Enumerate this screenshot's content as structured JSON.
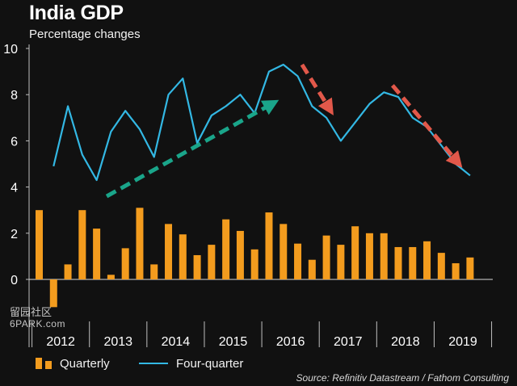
{
  "header": {
    "title": "India GDP",
    "subtitle": "Percentage changes"
  },
  "source": "Source: Refinitiv Datastream / Fathom Consulting",
  "watermark": {
    "text": "留园社区",
    "site": "6PARK.com"
  },
  "colors": {
    "background": "#111111",
    "bars": "#f39c1e",
    "line": "#33b8e4",
    "arrow_up": "#1aa58a",
    "arrow_down": "#e2584a"
  },
  "chart_data": {
    "type": "bar",
    "title": "India GDP",
    "subtitle": "Percentage changes",
    "xlabel": "",
    "ylabel": "",
    "ylim": [
      -1,
      10
    ],
    "yticks": [
      0,
      2,
      4,
      6,
      8,
      10
    ],
    "year_labels": [
      "2012",
      "2013",
      "2014",
      "2015",
      "2016",
      "2017",
      "2018",
      "2019"
    ],
    "quarters_per_year": 4,
    "legend_position": "bottom",
    "grid": false,
    "series": [
      {
        "name": "Quarterly",
        "type": "bar",
        "values": [
          3.0,
          -1.2,
          0.65,
          3.0,
          2.2,
          0.2,
          1.35,
          3.1,
          0.65,
          2.4,
          1.95,
          1.05,
          1.5,
          2.6,
          2.1,
          1.3,
          2.9,
          2.4,
          1.55,
          0.85,
          1.9,
          1.5,
          2.3,
          2.0,
          2.0,
          1.4,
          1.4,
          1.65,
          1.15,
          0.7,
          0.95
        ]
      },
      {
        "name": "Four-quarter",
        "type": "line",
        "values": [
          4.9,
          7.5,
          5.4,
          4.3,
          6.4,
          7.3,
          6.5,
          5.3,
          8.0,
          8.7,
          5.9,
          7.1,
          7.5,
          8.0,
          7.2,
          9.0,
          9.3,
          8.8,
          7.5,
          7.0,
          6.0,
          6.8,
          7.6,
          8.1,
          7.9,
          7.0,
          6.6,
          5.8,
          5.0,
          4.5
        ]
      }
    ],
    "annotations": [
      {
        "type": "arrow",
        "style": "dashed",
        "color": "#1aa58a",
        "from": [
          4.7,
          3.6
        ],
        "to": [
          16.2,
          7.6
        ]
      },
      {
        "type": "arrow",
        "style": "dashed",
        "color": "#e2584a",
        "from": [
          18.3,
          9.3
        ],
        "to": [
          20.2,
          7.4
        ]
      },
      {
        "type": "arrow",
        "style": "dashed",
        "color": "#e2584a",
        "from": [
          24.6,
          8.4
        ],
        "to": [
          29.1,
          5.1
        ]
      }
    ]
  },
  "legend": {
    "items": [
      {
        "label": "Quarterly"
      },
      {
        "label": "Four-quarter"
      }
    ]
  }
}
